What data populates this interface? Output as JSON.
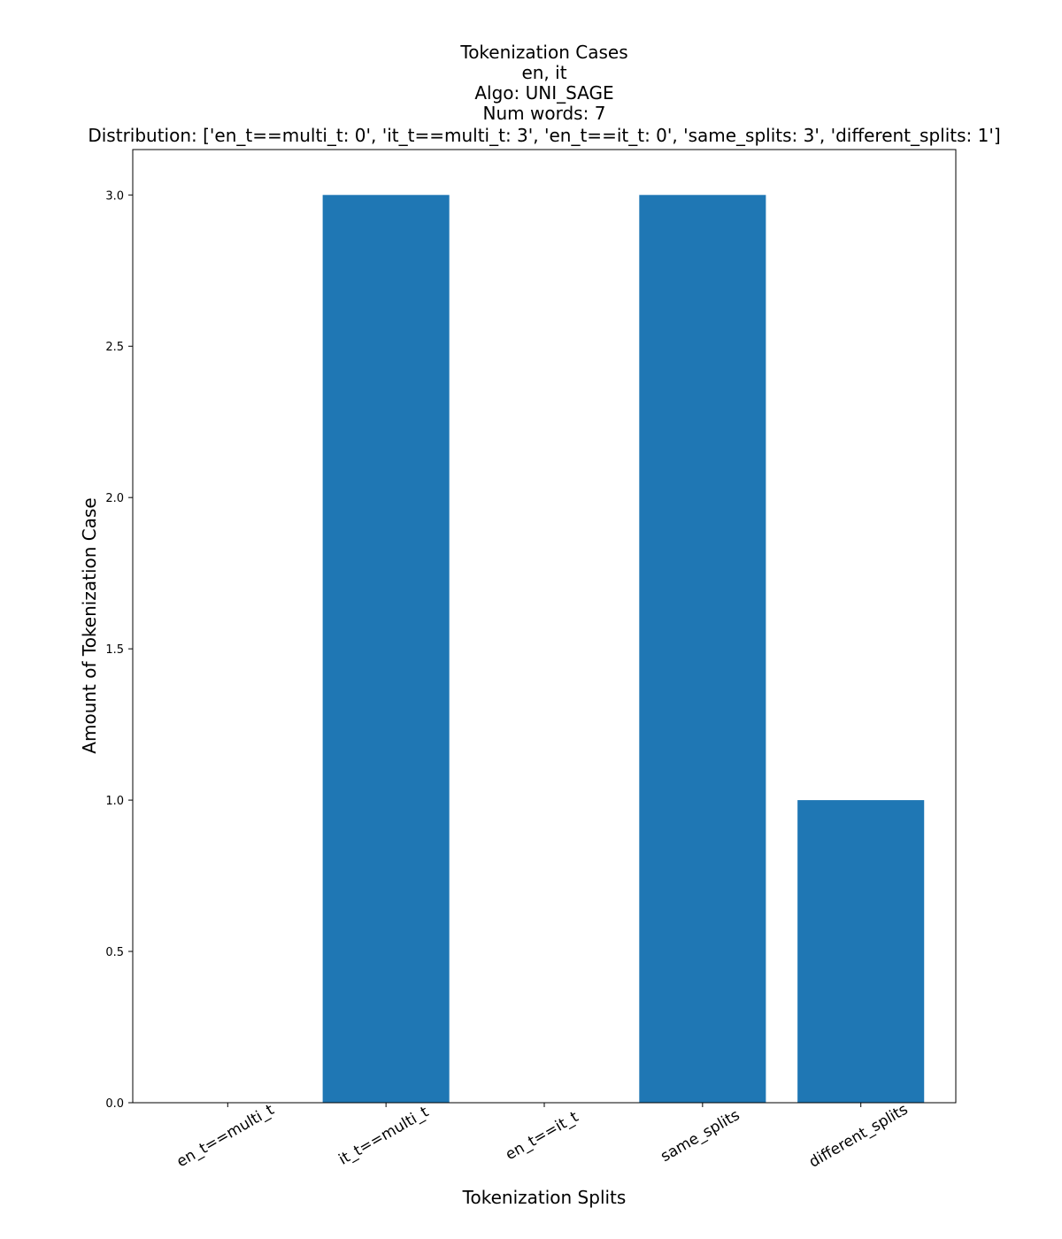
{
  "chart_data": {
    "type": "bar",
    "title_lines": [
      "Tokenization Cases",
      "en, it",
      "Algo: UNI_SAGE",
      "Num words: 7",
      "Distribution: ['en_t==multi_t: 0', 'it_t==multi_t: 3', 'en_t==it_t: 0', 'same_splits: 3', 'different_splits: 1']"
    ],
    "xlabel": "Tokenization Splits",
    "ylabel": "Amount of Tokenization Case",
    "categories": [
      "en_t==multi_t",
      "it_t==multi_t",
      "en_t==it_t",
      "same_splits",
      "different_splits"
    ],
    "values": [
      0,
      3,
      0,
      3,
      1
    ],
    "ylim": [
      0,
      3.15
    ],
    "yticks": [
      0.0,
      0.5,
      1.0,
      1.5,
      2.0,
      2.5,
      3.0
    ],
    "ytick_labels": [
      "0.0",
      "0.5",
      "1.0",
      "1.5",
      "2.0",
      "2.5",
      "3.0"
    ],
    "bar_color": "#1f77b4",
    "grid": false,
    "legend": null
  }
}
